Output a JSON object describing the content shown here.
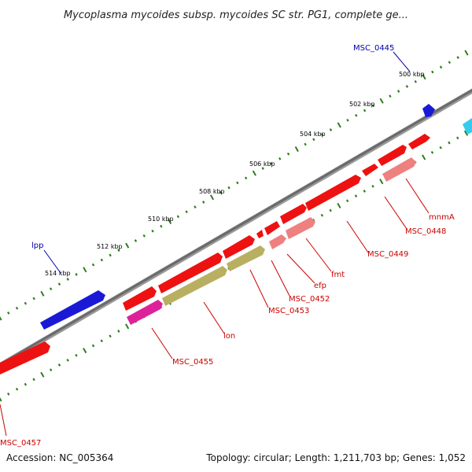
{
  "title": "Mycoplasma mycoides subsp. mycoides SC str. PG1, complete ge...",
  "footer": {
    "accession": "Accession: NC_005364",
    "stats": "Topology: circular; Length: 1,211,703 bp; Genes: 1,052"
  },
  "ticks": [
    "500 kbp",
    "502 kbp",
    "504 kbp",
    "506 kbp",
    "508 kbp",
    "510 kbp",
    "512 kbp",
    "514 kbp"
  ],
  "colors": {
    "backbone": "#7f7f7f",
    "tick": "#2e7d1e",
    "red_gene": "#ee1111",
    "pink_gene": "#ee8080",
    "magenta_gene": "#dd2299",
    "olive_gene": "#b8b060",
    "blue_gene": "#1a1ad6",
    "cyan_gene": "#33ccee",
    "label_red": "#cc0000",
    "label_blue": "#0000aa"
  },
  "gene_labels": [
    {
      "name": "MSC_0445",
      "color": "blue"
    },
    {
      "name": "lpp",
      "color": "blue"
    },
    {
      "name": "mnmA",
      "color": "red"
    },
    {
      "name": "MSC_0448",
      "color": "red"
    },
    {
      "name": "MSC_0449",
      "color": "red"
    },
    {
      "name": "fmt",
      "color": "red"
    },
    {
      "name": "efp",
      "color": "red"
    },
    {
      "name": "MSC_0452",
      "color": "red"
    },
    {
      "name": "MSC_0453",
      "color": "red"
    },
    {
      "name": "lon",
      "color": "red"
    },
    {
      "name": "MSC_0455",
      "color": "red"
    },
    {
      "name": "MSC_0457",
      "color": "red"
    }
  ]
}
